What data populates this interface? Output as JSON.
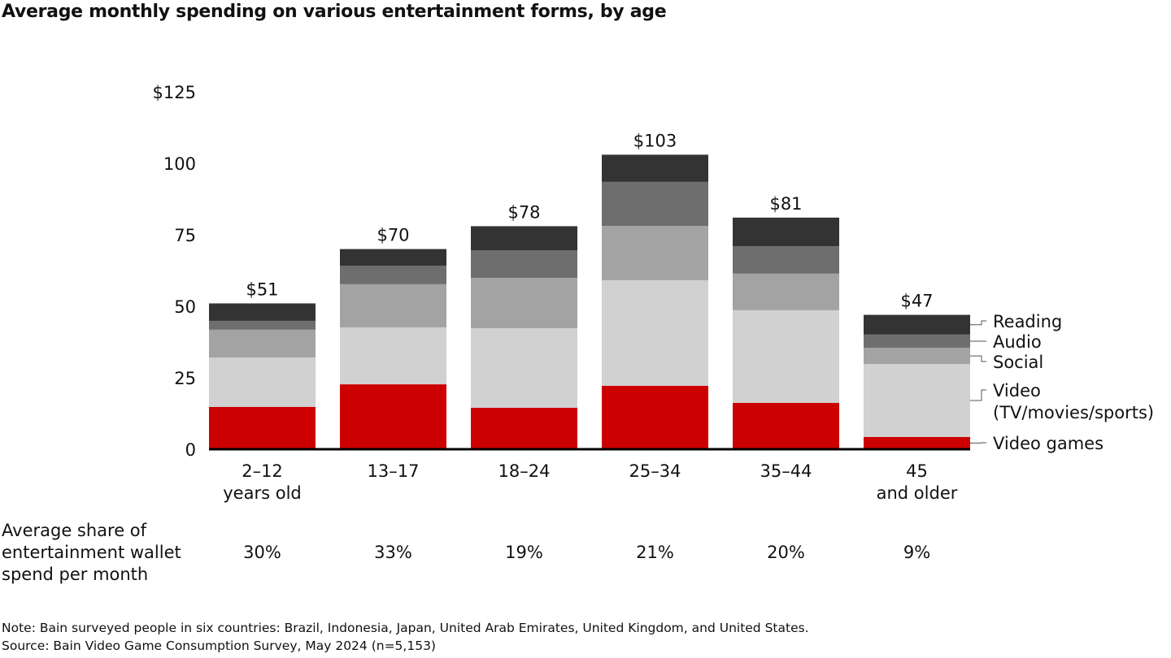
{
  "title": "Average monthly spending on various entertainment forms, by age",
  "chart_data": {
    "type": "bar",
    "stacked": true,
    "title": "Average monthly spending on various entertainment forms, by age",
    "xlabel": "",
    "ylabel": "",
    "ylim": [
      0,
      125
    ],
    "yticks": [
      0,
      25,
      50,
      75,
      100,
      125
    ],
    "ytick_labels": [
      "0",
      "25",
      "50",
      "75",
      "100",
      "$125"
    ],
    "categories": [
      [
        "2–12",
        "years old"
      ],
      [
        "13–17"
      ],
      [
        "18–24"
      ],
      [
        "25–34"
      ],
      [
        "35–44"
      ],
      [
        "45",
        "and older"
      ]
    ],
    "totals": [
      51,
      70,
      78,
      103,
      81,
      47
    ],
    "total_labels": [
      "$51",
      "$70",
      "$78",
      "$103",
      "$81",
      "$47"
    ],
    "series": [
      {
        "name": "Video games",
        "label_lines": [
          "Video games"
        ],
        "color": "#cc0000",
        "values": [
          14.8,
          22.7,
          14.5,
          22.2,
          16.2,
          4.3
        ]
      },
      {
        "name": "Video (TV/movies/sports)",
        "label_lines": [
          "Video",
          "(TV/movies/sports)"
        ],
        "color": "#d1d1d1",
        "values": [
          17.3,
          19.9,
          27.8,
          36.9,
          32.4,
          25.5
        ]
      },
      {
        "name": "Social",
        "label_lines": [
          "Social"
        ],
        "color": "#a3a3a3",
        "values": [
          9.7,
          15.1,
          17.6,
          19.0,
          12.8,
          5.7
        ]
      },
      {
        "name": "Audio",
        "label_lines": [
          "Audio"
        ],
        "color": "#6e6e6e",
        "values": [
          3.1,
          6.5,
          9.7,
          15.4,
          9.6,
          4.6
        ]
      },
      {
        "name": "Reading",
        "label_lines": [
          "Reading"
        ],
        "color": "#333333",
        "values": [
          6.1,
          5.8,
          8.4,
          9.5,
          10.0,
          6.9
        ]
      }
    ],
    "legend_placement": "right",
    "grid": false,
    "share_row": {
      "label_lines": [
        "Average share of",
        "entertainment wallet",
        "spend per month"
      ],
      "values": [
        "30%",
        "33%",
        "19%",
        "21%",
        "20%",
        "9%"
      ]
    }
  },
  "notes": {
    "note": "Note: Bain surveyed people in six countries: Brazil, Indonesia, Japan, United Arab Emirates, United Kingdom, and United States.",
    "source": "Source: Bain Video Game Consumption Survey, May 2024 (n=5,153)"
  }
}
